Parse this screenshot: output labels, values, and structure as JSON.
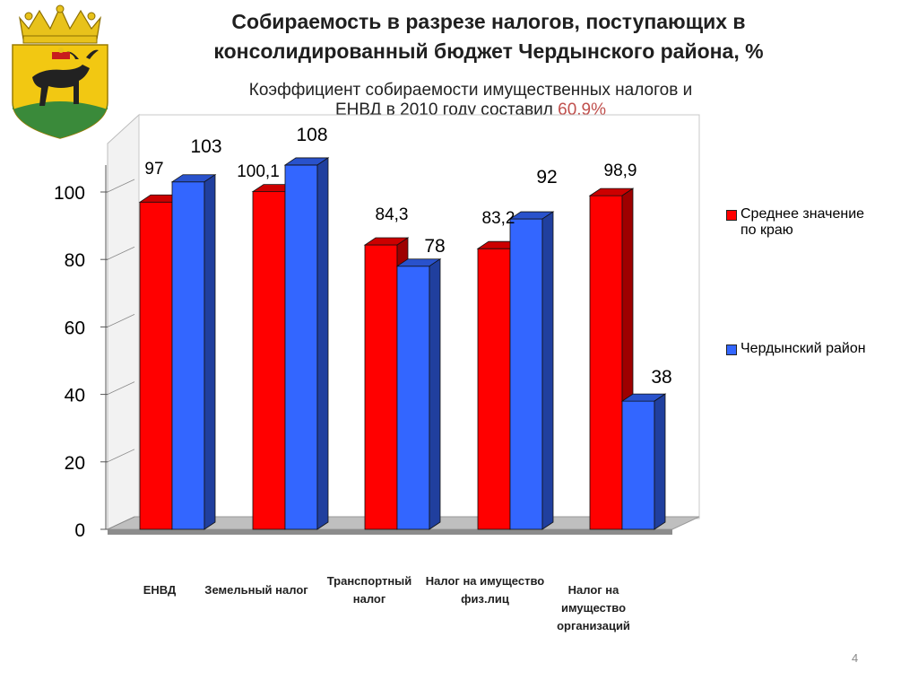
{
  "slide": {
    "title": "Собираемость в разрезе налогов, поступающих в консолидированный бюджет Чердынского района, %",
    "subtitle_main": "Коэффициент собираемости имущественных налогов и ЕНВД в 2010 году составил ",
    "subtitle_highlight": "60,9%",
    "page_number": "4"
  },
  "colors": {
    "red": "#ff0000",
    "blue": "#3366ff",
    "highlight": "#c0504d"
  },
  "chart_data": {
    "type": "bar",
    "categories": [
      "ЕНВД",
      "Земельный налог",
      "Транспортный налог",
      "Налог на имущество физ.лиц",
      "Налог на имущество организаций"
    ],
    "series": [
      {
        "name": "Среднее значение по краю",
        "values": [
          97,
          100.1,
          84.3,
          83.2,
          98.9
        ],
        "labels": [
          "97",
          "100,1",
          "84,3",
          "83,2",
          "98,9"
        ],
        "color": "#ff0000"
      },
      {
        "name": "Чердынский район",
        "values": [
          103,
          108,
          78,
          92,
          38
        ],
        "labels": [
          "103",
          "108",
          "78",
          "92",
          "38"
        ],
        "color": "#3366ff"
      }
    ],
    "y_ticks": [
      "0",
      "20",
      "40",
      "60",
      "80",
      "100"
    ],
    "ylim": [
      0,
      110
    ],
    "legend": "right",
    "grid": false
  }
}
